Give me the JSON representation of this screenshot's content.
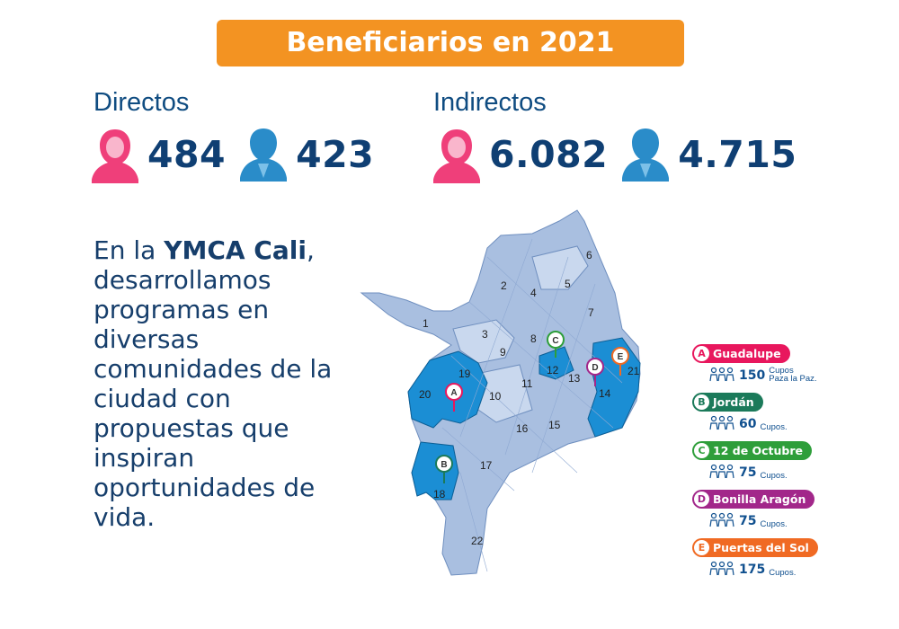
{
  "header": {
    "title": "Beneficiarios en 2021"
  },
  "stats": {
    "directos": {
      "label": "Directos",
      "women": "484",
      "men": "423"
    },
    "indirectos": {
      "label": "Indirectos",
      "women": "6.082",
      "men": "4.715"
    }
  },
  "intro": {
    "before": "En la ",
    "brand": "YMCA Cali",
    "after": ", desarrollamos programas en diversas comunidades de la ciudad con propuestas que inspiran oportunidades de vida."
  },
  "map": {
    "comunas": [
      "1",
      "2",
      "3",
      "4",
      "5",
      "6",
      "7",
      "8",
      "9",
      "10",
      "11",
      "12",
      "13",
      "14",
      "15",
      "16",
      "17",
      "18",
      "19",
      "20",
      "21",
      "22"
    ],
    "pins": [
      {
        "letter": "A",
        "color": "#e8175d"
      },
      {
        "letter": "B",
        "color": "#1b7a5a"
      },
      {
        "letter": "C",
        "color": "#2e9e3a"
      },
      {
        "letter": "D",
        "color": "#a2278a"
      },
      {
        "letter": "E",
        "color": "#f06a23"
      }
    ]
  },
  "legend": [
    {
      "letter": "A",
      "name": "Guadalupe",
      "color": "#e8175d",
      "cupos": "150",
      "label": "Cupos\nPaza la Paz."
    },
    {
      "letter": "B",
      "name": "Jordán",
      "color": "#1b7a5a",
      "cupos": "60",
      "label": "Cupos."
    },
    {
      "letter": "C",
      "name": "12 de Octubre",
      "color": "#2e9e3a",
      "cupos": "75",
      "label": "Cupos."
    },
    {
      "letter": "D",
      "name": "Bonilla Aragón",
      "color": "#a2278a",
      "cupos": "75",
      "label": "Cupos."
    },
    {
      "letter": "E",
      "name": "Puertas del Sol",
      "color": "#f06a23",
      "cupos": "175",
      "label": "Cupos."
    }
  ],
  "colors": {
    "accent": "#f39322",
    "text": "#0f3f73",
    "woman": "#ef3f7a",
    "man": "#2a8cc9",
    "highlight_comuna": "#1b8ed4",
    "map_base": "#a9bfe0"
  }
}
